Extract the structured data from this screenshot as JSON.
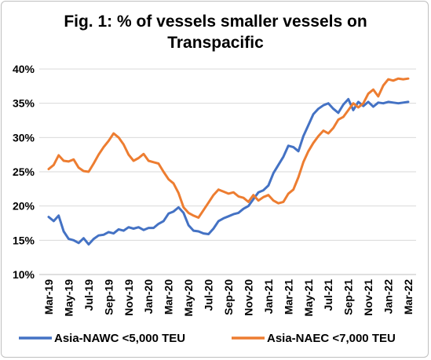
{
  "chart_data": {
    "type": "line",
    "title_line1": "Fig. 1: % of vessels smaller vessels on",
    "title_line2": "Transpacific",
    "xlabel": "",
    "ylabel": "",
    "ylim": [
      10,
      40
    ],
    "yticks": [
      "10%",
      "15%",
      "20%",
      "25%",
      "30%",
      "35%",
      "40%"
    ],
    "ytick_values": [
      10,
      15,
      20,
      25,
      30,
      35,
      40
    ],
    "xtick_labels": [
      "Mar-19",
      "May-19",
      "Jul-19",
      "Sep-19",
      "Nov-19",
      "Jan-20",
      "Mar-20",
      "May-20",
      "Jul-20",
      "Sep-20",
      "Nov-20",
      "Jan-21",
      "Mar-21",
      "May-21",
      "Jul-21",
      "Sep-21",
      "Nov-21",
      "Jan-22",
      "Mar-22"
    ],
    "grid": "horizontal",
    "legend_position": "bottom",
    "series": [
      {
        "name": "Asia-NAWC <5,000 TEU",
        "color": "#4472C4",
        "x_months": [
          0,
          0.5,
          1,
          1.5,
          2,
          2.5,
          3,
          3.5,
          4,
          4.5,
          5,
          5.5,
          6,
          6.5,
          7,
          7.5,
          8,
          8.5,
          9,
          9.5,
          10,
          10.5,
          11,
          11.5,
          12,
          12.5,
          13,
          13.5,
          14,
          14.5,
          15,
          15.5,
          16,
          16.5,
          17,
          17.5,
          18,
          18.5,
          19,
          19.5,
          20,
          20.5,
          21,
          21.5,
          22,
          22.5,
          23,
          23.5,
          24,
          24.5,
          25,
          25.5,
          26,
          26.5,
          27,
          27.5,
          28,
          28.5,
          29,
          29.5,
          30,
          30.5,
          31,
          31.5,
          32,
          32.5,
          33,
          33.5,
          34,
          34.5,
          35,
          35.5,
          36
        ],
        "values": [
          18.4,
          17.8,
          18.6,
          16.3,
          15.2,
          15.0,
          14.6,
          15.3,
          14.4,
          15.2,
          15.7,
          15.8,
          16.2,
          16.0,
          16.6,
          16.4,
          16.9,
          16.7,
          16.9,
          16.5,
          16.8,
          16.8,
          17.4,
          17.8,
          18.9,
          19.2,
          19.8,
          19.0,
          17.2,
          16.4,
          16.3,
          16.0,
          15.9,
          16.7,
          17.8,
          18.2,
          18.5,
          18.8,
          19.0,
          19.6,
          20.0,
          21.0,
          22.0,
          22.3,
          23.0,
          24.8,
          26.0,
          27.2,
          28.8,
          28.6,
          28.0,
          30.2,
          31.8,
          33.4,
          34.2,
          34.7,
          35.0,
          34.2,
          33.6,
          34.8,
          35.6,
          34.0,
          35.2,
          34.6,
          35.2,
          34.5,
          35.1,
          35.0,
          35.2,
          35.1,
          35.0,
          35.1,
          35.2
        ],
        "x_offset": 0
      },
      {
        "name": "Asia-NAEC <7,000 TEU",
        "color": "#ED7D31",
        "x_months": [
          0,
          0.5,
          1,
          1.5,
          2,
          2.5,
          3,
          3.5,
          4,
          4.5,
          5,
          5.5,
          6,
          6.5,
          7,
          7.5,
          8,
          8.5,
          9,
          9.5,
          10,
          10.5,
          11,
          11.5,
          12,
          12.5,
          13,
          13.5,
          14,
          14.5,
          15,
          15.5,
          16,
          16.5,
          17,
          17.5,
          18,
          18.5,
          19,
          19.5,
          20,
          20.5,
          21,
          21.5,
          22,
          22.5,
          23,
          23.5,
          24,
          24.5,
          25,
          25.5,
          26,
          26.5,
          27,
          27.5,
          28,
          28.5,
          29,
          29.5,
          30,
          30.5,
          31,
          31.5,
          32,
          32.5,
          33,
          33.5,
          34,
          34.5,
          35,
          35.5,
          36
        ],
        "values": [
          25.4,
          26.0,
          27.4,
          26.6,
          26.5,
          26.8,
          25.6,
          25.1,
          25.0,
          26.2,
          27.5,
          28.6,
          29.5,
          30.6,
          30.0,
          29.0,
          27.5,
          26.6,
          27.0,
          27.6,
          26.6,
          26.4,
          26.2,
          25.0,
          23.9,
          23.3,
          21.9,
          19.8,
          19.0,
          18.6,
          18.3,
          19.4,
          20.5,
          21.6,
          22.4,
          22.1,
          21.8,
          22.0,
          21.4,
          21.2,
          20.6,
          21.6,
          20.8,
          21.3,
          21.6,
          20.8,
          20.4,
          20.6,
          21.8,
          22.4,
          24.2,
          26.4,
          28.0,
          29.2,
          30.2,
          31.0,
          30.6,
          31.4,
          32.6,
          33.0,
          34.0,
          35.0,
          34.4,
          35.0,
          36.4,
          37.0,
          36.0,
          37.6,
          38.5,
          38.3,
          38.6,
          38.5,
          38.6
        ],
        "x_offset": 0
      }
    ]
  }
}
